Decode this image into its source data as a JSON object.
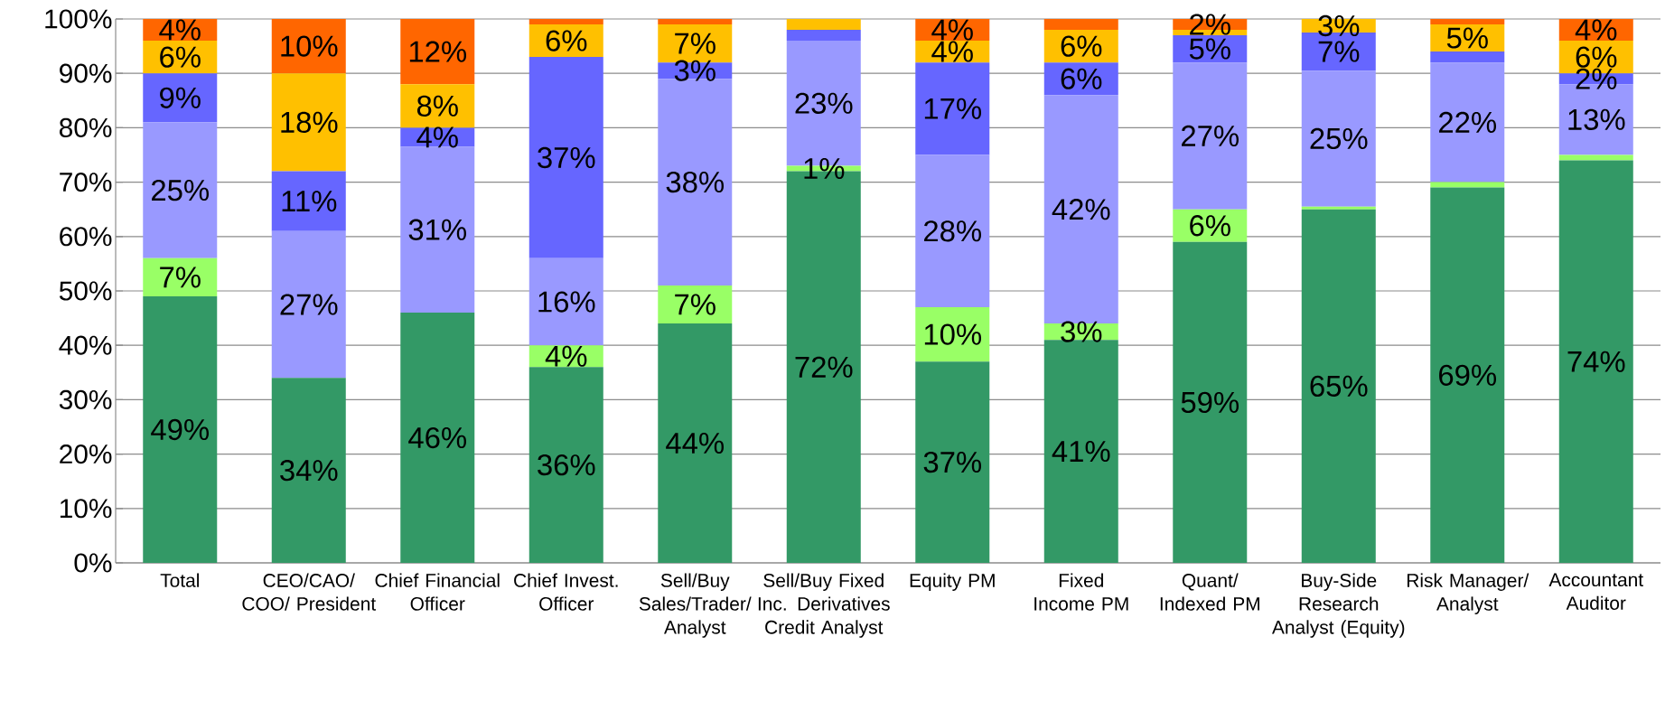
{
  "chart_data": {
    "type": "bar",
    "stacked": true,
    "grid": "y",
    "categories": [
      "Total",
      "CEO/CAO/ COO/ President",
      "Chief Financial Officer",
      "Chief Invest. Officer",
      "Sell/Buy Sales/Trader/ Analyst",
      "Sell/Buy Fixed Inc. Derivatives Credit Analyst",
      "Equity PM",
      "Fixed Income PM",
      "Quant/ Indexed PM",
      "Buy-Side Research Analyst (Equity)",
      "Risk Manager/ Analyst",
      "Accountant Auditor"
    ],
    "ylim": [
      0,
      100
    ],
    "yticks": [
      {
        "value": 0,
        "label": "0%"
      },
      {
        "value": 10,
        "label": "10%"
      },
      {
        "value": 20,
        "label": "20%"
      },
      {
        "value": 30,
        "label": "30%"
      },
      {
        "value": 40,
        "label": "40%"
      },
      {
        "value": 50,
        "label": "50%"
      },
      {
        "value": 60,
        "label": "60%"
      },
      {
        "value": 70,
        "label": "70%"
      },
      {
        "value": 80,
        "label": "80%"
      },
      {
        "value": 90,
        "label": "90%"
      },
      {
        "value": 100,
        "label": "100%"
      }
    ],
    "series": [
      {
        "color": "#339966",
        "values": [
          49,
          34,
          46,
          36,
          44,
          72,
          37,
          41,
          59,
          65,
          69,
          74
        ],
        "value_labels": [
          "49%",
          "34%",
          "46%",
          "36%",
          "44%",
          "72%",
          "37%",
          "41%",
          "59%",
          "65%",
          "69%",
          "74%"
        ]
      },
      {
        "color": "#99ff66",
        "values": [
          7,
          0,
          0,
          4,
          7,
          1,
          10,
          3,
          6,
          0.5,
          1,
          1
        ],
        "value_labels": [
          "7%",
          null,
          null,
          "4%",
          "7%",
          "1%",
          "10%",
          "3%",
          "6%",
          null,
          null,
          null
        ]
      },
      {
        "color": "#9999ff",
        "values": [
          25,
          27,
          30.5,
          16,
          38,
          23,
          28,
          42,
          27,
          25,
          22,
          13
        ],
        "value_labels": [
          "25%",
          "27%",
          "31%",
          "16%",
          "38%",
          "23%",
          "28%",
          "42%",
          "27%",
          "25%",
          "22%",
          "13%"
        ]
      },
      {
        "color": "#6666ff",
        "values": [
          9,
          11,
          3.5,
          37,
          3,
          2,
          17,
          6,
          5,
          7,
          2,
          2
        ],
        "value_labels": [
          "9%",
          "11%",
          "4%",
          "37%",
          "3%",
          null,
          "17%",
          "6%",
          "5%",
          "7%",
          null,
          "2%"
        ]
      },
      {
        "color": "#ffc000",
        "values": [
          6,
          18,
          8,
          6,
          7,
          2,
          4,
          6,
          1,
          2.5,
          5,
          6
        ],
        "value_labels": [
          "6%",
          "18%",
          "8%",
          "6%",
          "7%",
          null,
          "4%",
          "6%",
          null,
          "3%",
          "5%",
          "6%"
        ]
      },
      {
        "color": "#ff6600",
        "values": [
          4,
          10,
          12,
          1,
          1,
          0,
          4,
          2,
          2,
          0,
          1,
          4
        ],
        "value_labels": [
          "4%",
          "10%",
          "12%",
          null,
          null,
          null,
          "4%",
          null,
          "2%",
          null,
          null,
          "4%"
        ]
      }
    ]
  }
}
